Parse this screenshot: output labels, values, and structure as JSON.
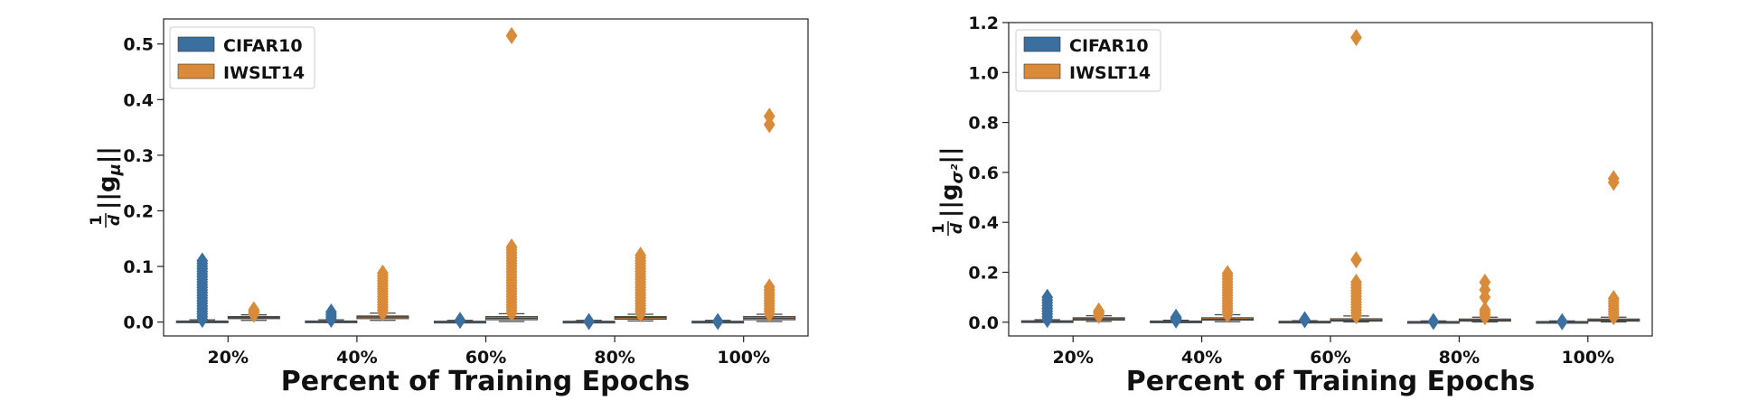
{
  "chart_data": [
    {
      "type": "boxplot",
      "title": "",
      "xlabel": "Percent of Training Epochs",
      "ylabel": {
        "prefix": "1",
        "denominator": "d",
        "body": "||g",
        "subscript": "μ",
        "suffix": "||"
      },
      "categories": [
        "20%",
        "40%",
        "60%",
        "80%",
        "100%"
      ],
      "ylim": [
        -0.025,
        0.545
      ],
      "yticks": [
        0.0,
        0.1,
        0.2,
        0.3,
        0.4,
        0.5
      ],
      "ytick_labels": [
        "0.0",
        "0.1",
        "0.2",
        "0.3",
        "0.4",
        "0.5"
      ],
      "legend": {
        "placement": "top-left",
        "entries": [
          "CIFAR10",
          "IWSLT14"
        ]
      },
      "series": [
        {
          "name": "CIFAR10",
          "color": "#3a6fa0",
          "boxes": [
            {
              "q1": 0.0,
              "median": 0.001,
              "q3": 0.002,
              "whisker_low": 0.0,
              "whisker_high": 0.004,
              "outlier_range": [
                0.005,
                0.11
              ]
            },
            {
              "q1": 0.0,
              "median": 0.001,
              "q3": 0.002,
              "whisker_low": 0.0,
              "whisker_high": 0.004,
              "outlier_range": [
                0.005,
                0.018
              ]
            },
            {
              "q1": 0.0,
              "median": 0.001,
              "q3": 0.0015,
              "whisker_low": 0.0,
              "whisker_high": 0.003,
              "outliers": [
                0.003
              ]
            },
            {
              "q1": 0.0,
              "median": 0.001,
              "q3": 0.0015,
              "whisker_low": 0.0,
              "whisker_high": 0.003,
              "outliers": [
                0.001
              ]
            },
            {
              "q1": 0.0,
              "median": 0.001,
              "q3": 0.0015,
              "whisker_low": 0.0,
              "whisker_high": 0.003,
              "outliers": [
                0.001
              ]
            }
          ]
        },
        {
          "name": "IWSLT14",
          "color": "#d98b3a",
          "boxes": [
            {
              "q1": 0.006,
              "median": 0.008,
              "q3": 0.01,
              "whisker_low": 0.003,
              "whisker_high": 0.013,
              "outlier_range": [
                0.014,
                0.022
              ]
            },
            {
              "q1": 0.006,
              "median": 0.009,
              "q3": 0.011,
              "whisker_low": 0.003,
              "whisker_high": 0.016,
              "outlier_range": [
                0.017,
                0.088
              ]
            },
            {
              "q1": 0.004,
              "median": 0.007,
              "q3": 0.01,
              "whisker_low": 0.001,
              "whisker_high": 0.015,
              "outlier_range": [
                0.016,
                0.135
              ],
              "outliers": [
                0.515
              ]
            },
            {
              "q1": 0.005,
              "median": 0.008,
              "q3": 0.01,
              "whisker_low": 0.002,
              "whisker_high": 0.014,
              "outlier_range": [
                0.015,
                0.12
              ]
            },
            {
              "q1": 0.004,
              "median": 0.007,
              "q3": 0.01,
              "whisker_low": 0.001,
              "whisker_high": 0.014,
              "outlier_range": [
                0.015,
                0.063
              ],
              "outliers": [
                0.355,
                0.37
              ]
            }
          ]
        }
      ]
    },
    {
      "type": "boxplot",
      "title": "",
      "xlabel": "Percent of Training Epochs",
      "ylabel": {
        "prefix": "1",
        "denominator": "d",
        "body": "||g",
        "subscript": "σ²",
        "suffix": "||"
      },
      "categories": [
        "20%",
        "40%",
        "60%",
        "80%",
        "100%"
      ],
      "ylim": [
        -0.055,
        1.2
      ],
      "yticks": [
        0.0,
        0.2,
        0.4,
        0.6,
        0.8,
        1.0,
        1.2
      ],
      "ytick_labels": [
        "0.0",
        "0.2",
        "0.4",
        "0.6",
        "0.8",
        "1.0",
        "1.2"
      ],
      "legend": {
        "placement": "top-left",
        "entries": [
          "CIFAR10",
          "IWSLT14"
        ]
      },
      "series": [
        {
          "name": "CIFAR10",
          "color": "#3a6fa0",
          "boxes": [
            {
              "q1": 0.0,
              "median": 0.003,
              "q3": 0.006,
              "whisker_low": 0.0,
              "whisker_high": 0.01,
              "outlier_range": [
                0.011,
                0.1
              ]
            },
            {
              "q1": 0.0,
              "median": 0.003,
              "q3": 0.005,
              "whisker_low": 0.0,
              "whisker_high": 0.008,
              "outlier_range": [
                0.009,
                0.02
              ]
            },
            {
              "q1": 0.0,
              "median": 0.002,
              "q3": 0.004,
              "whisker_low": 0.0,
              "whisker_high": 0.006,
              "outliers": [
                0.01
              ]
            },
            {
              "q1": 0.0,
              "median": 0.001,
              "q3": 0.003,
              "whisker_low": 0.0,
              "whisker_high": 0.005,
              "outliers": [
                0.003
              ]
            },
            {
              "q1": 0.0,
              "median": 0.001,
              "q3": 0.003,
              "whisker_low": 0.0,
              "whisker_high": 0.005,
              "outliers": [
                0.002
              ]
            }
          ]
        },
        {
          "name": "IWSLT14",
          "color": "#d98b3a",
          "boxes": [
            {
              "q1": 0.008,
              "median": 0.013,
              "q3": 0.018,
              "whisker_low": 0.003,
              "whisker_high": 0.026,
              "outlier_range": [
                0.027,
                0.045
              ]
            },
            {
              "q1": 0.008,
              "median": 0.012,
              "q3": 0.018,
              "whisker_low": 0.002,
              "whisker_high": 0.03,
              "outlier_range": [
                0.031,
                0.195
              ]
            },
            {
              "q1": 0.004,
              "median": 0.008,
              "q3": 0.014,
              "whisker_low": 0.001,
              "whisker_high": 0.025,
              "outlier_range": [
                0.026,
                0.16
              ],
              "outliers": [
                0.25,
                1.14
              ]
            },
            {
              "q1": 0.004,
              "median": 0.008,
              "q3": 0.013,
              "whisker_low": 0.001,
              "whisker_high": 0.02,
              "outlier_range": [
                0.022,
                0.05
              ],
              "outliers": [
                0.1,
                0.13,
                0.16
              ]
            },
            {
              "q1": 0.004,
              "median": 0.008,
              "q3": 0.013,
              "whisker_low": 0.001,
              "whisker_high": 0.02,
              "outlier_range": [
                0.022,
                0.095
              ],
              "outliers": [
                0.56,
                0.575
              ]
            }
          ]
        }
      ]
    }
  ]
}
